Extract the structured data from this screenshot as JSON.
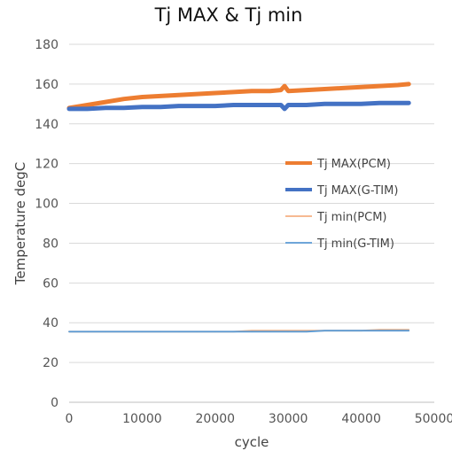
{
  "chart_data": {
    "type": "line",
    "title": "Tj MAX & Tj min",
    "xlabel": "cycle",
    "ylabel": "Temperature degC",
    "xlim": [
      0,
      50000
    ],
    "ylim": [
      0,
      180
    ],
    "x_ticks": [
      0,
      10000,
      20000,
      30000,
      40000,
      50000
    ],
    "y_ticks": [
      0,
      20,
      40,
      60,
      80,
      100,
      120,
      140,
      160,
      180
    ],
    "grid": "horizontal",
    "legend_position": "right",
    "series": [
      {
        "name": "Tj MAX(PCM)",
        "color": "#ED7D31",
        "line": "thick",
        "x": [
          0,
          2500,
          5000,
          7500,
          10000,
          12500,
          15000,
          17500,
          20000,
          22500,
          25000,
          27500,
          29000,
          29500,
          30000,
          32500,
          35000,
          37500,
          40000,
          42500,
          45000,
          46500
        ],
        "y": [
          148,
          149.5,
          151,
          152.5,
          153.5,
          154,
          154.5,
          155,
          155.5,
          156,
          156.5,
          156.5,
          157,
          159,
          156.5,
          157,
          157.5,
          158,
          158.5,
          159,
          159.5,
          160
        ]
      },
      {
        "name": "Tj MAX(G-TIM)",
        "color": "#4472C4",
        "line": "thick",
        "x": [
          0,
          2500,
          5000,
          7500,
          10000,
          12500,
          15000,
          17500,
          20000,
          22500,
          25000,
          27500,
          29000,
          29500,
          30000,
          32500,
          35000,
          37500,
          40000,
          42500,
          45000,
          46500
        ],
        "y": [
          147.5,
          147.5,
          148,
          148,
          148.5,
          148.5,
          149,
          149,
          149,
          149.5,
          149.5,
          149.5,
          149.5,
          147.5,
          149.5,
          149.5,
          150,
          150,
          150,
          150.5,
          150.5,
          150.5
        ]
      },
      {
        "name": "Tj min(PCM)",
        "color": "#F4B183",
        "line": "thin",
        "x": [
          0,
          2500,
          5000,
          7500,
          10000,
          12500,
          15000,
          17500,
          20000,
          22500,
          25000,
          27500,
          30000,
          32500,
          35000,
          37500,
          40000,
          42500,
          45000,
          46500
        ],
        "y": [
          35.5,
          35.5,
          35.5,
          35.5,
          35.5,
          35.5,
          35.5,
          35.5,
          35.5,
          35.5,
          36,
          36,
          36,
          36,
          36,
          36,
          36,
          36.5,
          36.5,
          36.5
        ]
      },
      {
        "name": "Tj min(G-TIM)",
        "color": "#5B9BD5",
        "line": "thin",
        "x": [
          0,
          2500,
          5000,
          7500,
          10000,
          12500,
          15000,
          17500,
          20000,
          22500,
          25000,
          27500,
          30000,
          32500,
          35000,
          37500,
          40000,
          42500,
          45000,
          46500
        ],
        "y": [
          35.5,
          35.5,
          35.5,
          35.5,
          35.5,
          35.5,
          35.5,
          35.5,
          35.5,
          35.5,
          35.5,
          35.5,
          35.5,
          35.5,
          36,
          36,
          36,
          36,
          36,
          36
        ]
      }
    ]
  }
}
